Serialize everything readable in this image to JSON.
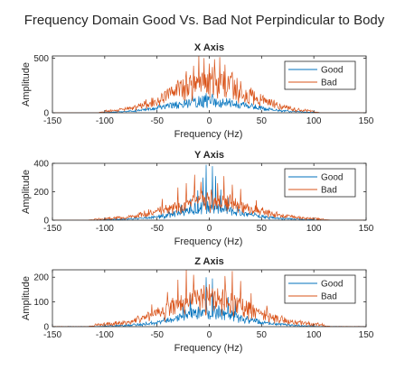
{
  "title": "Frequency Domain Good Vs. Bad Not Perpindicular to Body",
  "chart_data": [
    {
      "type": "line",
      "title": "X Axis",
      "xlabel": "Frequency (Hz)",
      "ylabel": "Amplitude",
      "xlim": [
        -150,
        150
      ],
      "ylim": [
        0,
        520
      ],
      "xticks": [
        -150,
        -100,
        -50,
        0,
        50,
        100,
        150
      ],
      "yticks": [
        0,
        500
      ],
      "legend": "top-right",
      "series": [
        {
          "name": "Good",
          "color": "#0072BD",
          "spread": 35,
          "width": 100,
          "peak": 120,
          "noise": 22,
          "spikes": [
            [
              -3,
              180
            ],
            [
              3,
              175
            ],
            [
              -17,
              110
            ],
            [
              17,
              105
            ],
            [
              -28,
              80
            ],
            [
              28,
              85
            ],
            [
              -45,
              60
            ],
            [
              45,
              55
            ]
          ]
        },
        {
          "name": "Bad",
          "color": "#D95319",
          "spread": 36,
          "width": 100,
          "peak": 300,
          "noise": 70,
          "spikes": [
            [
              -10,
              520
            ],
            [
              -5,
              500
            ],
            [
              0,
              450
            ],
            [
              5,
              490
            ],
            [
              10,
              510
            ],
            [
              -15,
              430
            ],
            [
              15,
              440
            ],
            [
              -22,
              380
            ],
            [
              22,
              370
            ],
            [
              -30,
              300
            ],
            [
              30,
              290
            ],
            [
              -40,
              220
            ],
            [
              40,
              230
            ]
          ]
        }
      ]
    },
    {
      "type": "line",
      "title": "Y Axis",
      "xlabel": "Frequency (Hz)",
      "ylabel": "Amplitude",
      "xlim": [
        -150,
        150
      ],
      "ylim": [
        0,
        400
      ],
      "xticks": [
        -150,
        -100,
        -50,
        0,
        50,
        100,
        150
      ],
      "yticks": [
        0,
        200,
        400
      ],
      "legend": "top-right",
      "series": [
        {
          "name": "Good",
          "color": "#0072BD",
          "spread": 28,
          "width": 100,
          "peak": 90,
          "noise": 28,
          "spikes": [
            [
              -3,
              390
            ],
            [
              3,
              380
            ],
            [
              -6,
              300
            ],
            [
              6,
              310
            ],
            [
              -11,
              210
            ],
            [
              11,
              215
            ],
            [
              -18,
              150
            ],
            [
              18,
              160
            ],
            [
              -27,
              110
            ],
            [
              27,
              100
            ]
          ]
        },
        {
          "name": "Bad",
          "color": "#D95319",
          "spread": 36,
          "width": 110,
          "peak": 140,
          "noise": 45,
          "spikes": [
            [
              -14,
              320
            ],
            [
              14,
              310
            ],
            [
              -22,
              260
            ],
            [
              22,
              250
            ],
            [
              -30,
              230
            ],
            [
              30,
              220
            ],
            [
              -8,
              270
            ],
            [
              8,
              260
            ],
            [
              -45,
              150
            ],
            [
              45,
              140
            ]
          ]
        }
      ]
    },
    {
      "type": "line",
      "title": "Z Axis",
      "xlabel": "Frequency (Hz)",
      "ylabel": "Amplitude",
      "xlim": [
        -150,
        150
      ],
      "ylim": [
        0,
        230
      ],
      "xticks": [
        -150,
        -100,
        -50,
        0,
        50,
        100,
        150
      ],
      "yticks": [
        0,
        100,
        200
      ],
      "legend": "top-right",
      "series": [
        {
          "name": "Good",
          "color": "#0072BD",
          "spread": 28,
          "width": 100,
          "peak": 60,
          "noise": 20,
          "spikes": [
            [
              -3,
              200
            ],
            [
              3,
              195
            ],
            [
              -18,
              130
            ],
            [
              18,
              120
            ],
            [
              -25,
              110
            ],
            [
              25,
              105
            ]
          ]
        },
        {
          "name": "Bad",
          "color": "#D95319",
          "spread": 36,
          "width": 110,
          "peak": 110,
          "noise": 45,
          "spikes": [
            [
              -22,
              230
            ],
            [
              22,
              225
            ],
            [
              -15,
              210
            ],
            [
              15,
              205
            ],
            [
              -30,
              190
            ],
            [
              30,
              185
            ],
            [
              -8,
              150
            ],
            [
              8,
              155
            ],
            [
              -40,
              140
            ],
            [
              40,
              135
            ],
            [
              -55,
              90
            ],
            [
              55,
              85
            ]
          ]
        }
      ]
    }
  ]
}
